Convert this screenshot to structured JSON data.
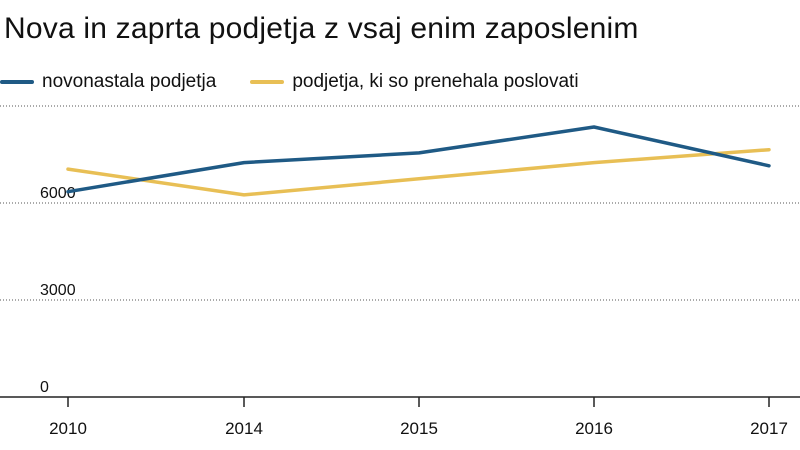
{
  "chart_data": {
    "type": "line",
    "title": "Nova in zaprta podjetja z vsaj enim zaposlenim",
    "categories": [
      "2010",
      "2014",
      "2015",
      "2016",
      "2017"
    ],
    "series": [
      {
        "name": "novonastala podjetja",
        "color": "#1f5a85",
        "values": [
          6350,
          7250,
          7550,
          8350,
          7150
        ]
      },
      {
        "name": "podjetja, ki so prenehala poslovati",
        "color": "#e8bf55",
        "values": [
          7050,
          6250,
          6750,
          7250,
          7650
        ]
      }
    ],
    "yticks": [
      "0",
      "3000",
      "6000"
    ],
    "ylim": [
      0,
      9000
    ],
    "grid": true
  }
}
